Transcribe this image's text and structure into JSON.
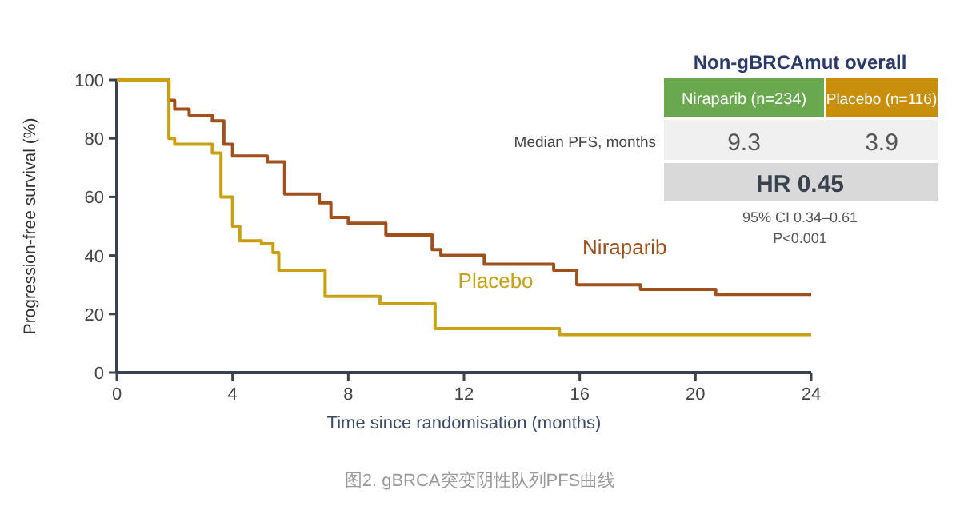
{
  "chart_data": {
    "type": "step",
    "xlabel": "Time  since randomisation  (months)",
    "ylabel": "Progression-free survival (%)",
    "xlim": [
      0,
      24
    ],
    "ylim": [
      0,
      100
    ],
    "xticks": [
      0,
      4,
      8,
      12,
      16,
      20,
      24
    ],
    "yticks": [
      0,
      20,
      40,
      60,
      80,
      100
    ],
    "series": [
      {
        "name": "Niraparib",
        "color": "#a0501c",
        "x": [
          0,
          1.8,
          2.0,
          2.5,
          3.3,
          3.7,
          4.0,
          5.2,
          5.8,
          6.7,
          7.0,
          7.4,
          8.0,
          9.3,
          10.9,
          11.2,
          12.7,
          15.1,
          15.9,
          18.1,
          20.7,
          24
        ],
        "values": [
          100,
          93,
          90,
          88,
          86,
          78,
          74,
          72,
          61,
          61,
          58,
          53,
          51,
          47,
          42,
          40,
          37,
          35,
          30,
          28.4,
          26.7,
          26.7
        ]
      },
      {
        "name": "Placebo",
        "color": "#c9a013",
        "x": [
          0,
          1.8,
          2.0,
          3.3,
          3.6,
          4.0,
          4.25,
          5.0,
          5.4,
          5.6,
          7.0,
          7.2,
          9.1,
          10.8,
          11.0,
          15.3,
          24
        ],
        "values": [
          100,
          80,
          78,
          75,
          60,
          50,
          45,
          44,
          41,
          35,
          35,
          26,
          23.5,
          23.5,
          15,
          13,
          13
        ]
      }
    ],
    "annotations": [
      "Non-gBRCAmut overall",
      "Niraparib (n=234)",
      "Placebo (n=116)",
      "Median PFS, months",
      "9.3",
      "3.9",
      "HR 0.45",
      "95% CI 0.34–0.61",
      "P<0.001",
      "图2. gBRCA突变阴性队列PFS曲线"
    ]
  }
}
